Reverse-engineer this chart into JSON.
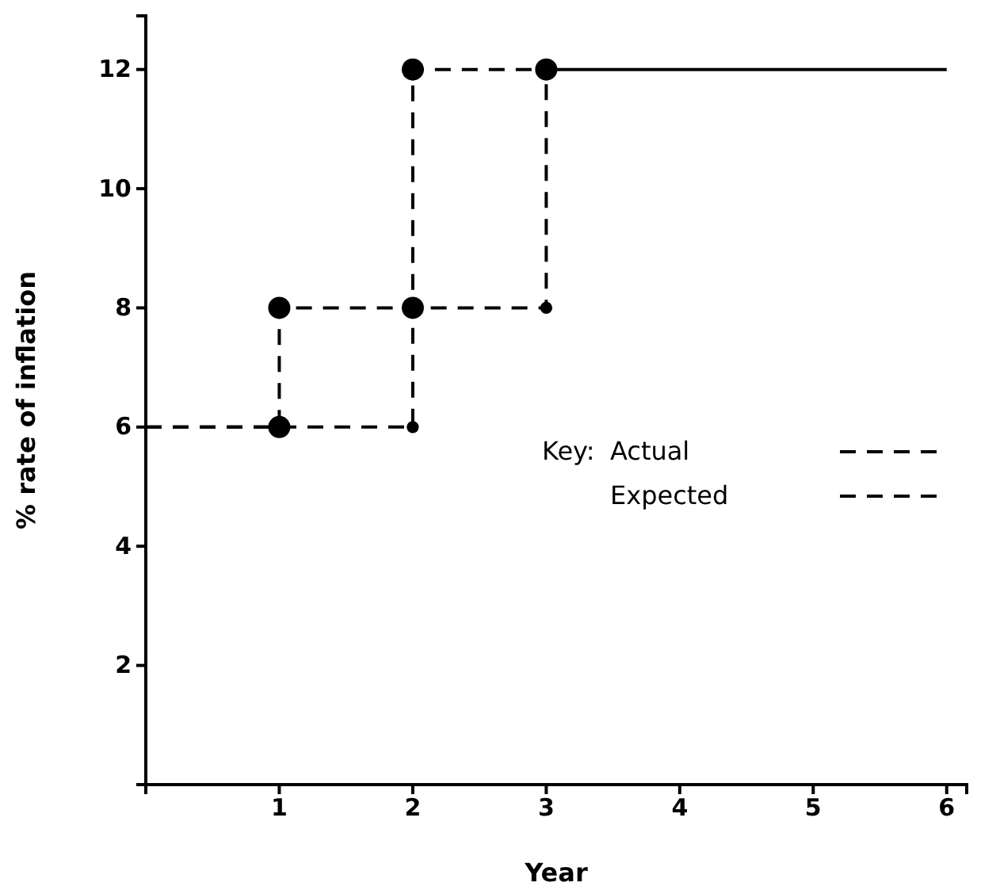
{
  "chart_data": {
    "type": "step",
    "xlabel": "Year",
    "ylabel": "% rate of inflation",
    "xlim": [
      0,
      6.15
    ],
    "ylim": [
      0,
      12.9
    ],
    "xticks": [
      1,
      2,
      3,
      4,
      5,
      6
    ],
    "yticks": [
      2,
      4,
      6,
      8,
      10,
      12
    ],
    "legend": "right",
    "legend_title": "Key:",
    "grid": false,
    "series": [
      {
        "name": "Actual",
        "type": "step",
        "color": "#000000",
        "line_style": "dashed",
        "x": [
          0,
          1,
          2,
          3
        ],
        "values": [
          6,
          8,
          12,
          12
        ]
      },
      {
        "name": "Expected",
        "type": "step",
        "color": "#000000",
        "line_style": "dashed",
        "x": [
          0,
          1,
          2,
          3
        ],
        "values": [
          6,
          6,
          8,
          12
        ]
      },
      {
        "type": "line",
        "color": "#000000",
        "line_style": "solid",
        "x": [
          3,
          6
        ],
        "values": [
          12,
          12
        ]
      },
      {
        "type": "bubble",
        "color": "#000000",
        "marker": "circle",
        "x": [
          1,
          1,
          2,
          2,
          3,
          2,
          3
        ],
        "values": [
          6,
          8,
          8,
          12,
          12,
          6,
          8
        ],
        "sizes": [
          1,
          1,
          1,
          1,
          1,
          0.3,
          0.3
        ]
      }
    ]
  }
}
